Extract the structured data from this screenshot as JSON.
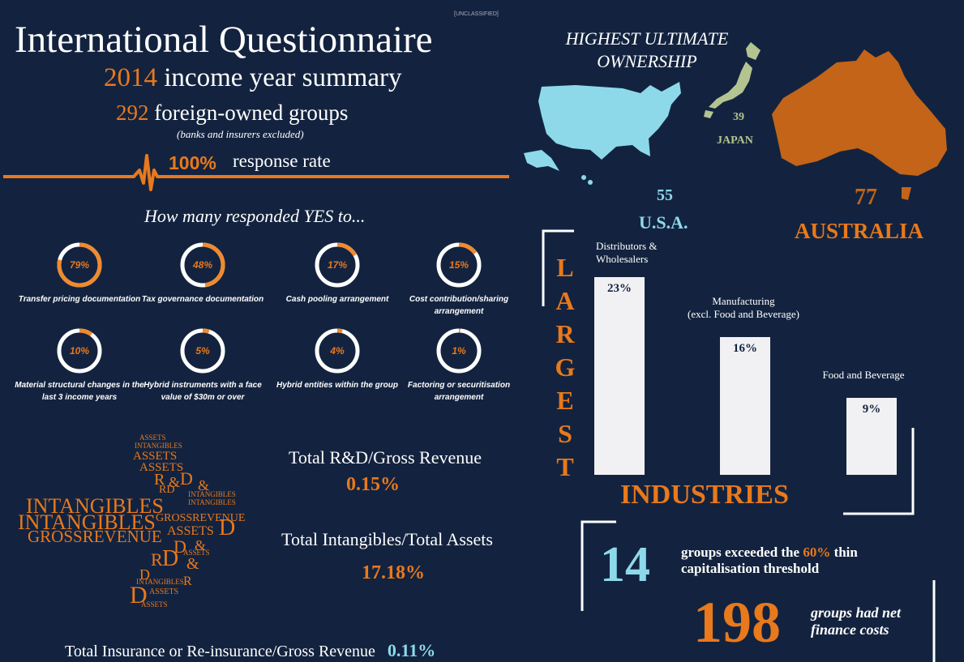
{
  "classification": "[UNCLASSIFIED]",
  "header": {
    "title": "International Questionnaire",
    "year": "2014",
    "subtitle": "income year summary",
    "groups_count": "292",
    "groups_label": "foreign-owned groups",
    "groups_note": "(banks and insurers excluded)",
    "response_pct": "100%",
    "response_label": "response rate"
  },
  "questions": {
    "heading": "How many responded YES to...",
    "items": [
      {
        "value": 79,
        "display": "79%",
        "label": "Transfer pricing documentation"
      },
      {
        "value": 48,
        "display": "48%",
        "label": "Tax governance documentation"
      },
      {
        "value": 17,
        "display": "17%",
        "label": "Cash pooling arrangement"
      },
      {
        "value": 15,
        "display": "15%",
        "label": "Cost contribution/sharing arrangement"
      },
      {
        "value": 10,
        "display": "10%",
        "label": "Material structural changes in the last 3 income years"
      },
      {
        "value": 5,
        "display": "5%",
        "label": "Hybrid instruments with a face value of $30m or over"
      },
      {
        "value": 4,
        "display": "4%",
        "label": "Hybrid entities within the group"
      },
      {
        "value": 1,
        "display": "1%",
        "label": "Factoring or securitisation arrangement"
      }
    ]
  },
  "ratios": {
    "rd_label": "Total R&D/Gross Revenue",
    "rd_value": "0.15%",
    "intang_label": "Total Intangibles/Total Assets",
    "intang_value": "17.18%",
    "insurance_label": "Total Insurance or Re-insurance/Gross Revenue",
    "insurance_value": "0.11%"
  },
  "wordcloud": {
    "intangibles": "INTANGIBLES",
    "grossrevenue": "GROSSREVENUE",
    "assets": "ASSETS",
    "r": "R",
    "d": "D",
    "amp": "&",
    "rd": "RD"
  },
  "ownership": {
    "heading": "HIGHEST ULTIMATE OWNERSHIP",
    "usa_count": "55",
    "usa_label": "U.S.A.",
    "japan_count": "39",
    "japan_label": "JAPAN",
    "australia_count": "77",
    "australia_label": "AUSTRALIA",
    "colors": {
      "usa": "#8dd9ea",
      "japan": "#b4c490",
      "australia": "#c36419"
    }
  },
  "industries": {
    "vertical_word": [
      "L",
      "A",
      "R",
      "G",
      "E",
      "S",
      "T"
    ],
    "title": "INDUSTRIES",
    "chart_data": {
      "type": "bar",
      "categories": [
        "Distributors & Wholesalers",
        "Manufacturing (excl. Food and Beverage)",
        "Food and Beverage"
      ],
      "values": [
        23,
        16,
        9
      ],
      "display": [
        "23%",
        "16%",
        "9%"
      ],
      "label_lines": [
        [
          "Distributors &",
          "Wholesalers"
        ],
        [
          "Manufacturing",
          "(excl. Food and Beverage)"
        ],
        [
          "Food and Beverage"
        ]
      ]
    }
  },
  "thin_cap": {
    "count": "14",
    "text_pre": "groups exceeded the",
    "threshold": "60%",
    "text_post": "thin",
    "text_line2": "capitalisation threshold"
  },
  "finance": {
    "count": "198",
    "line1": "groups had net",
    "line2": "finance costs"
  }
}
